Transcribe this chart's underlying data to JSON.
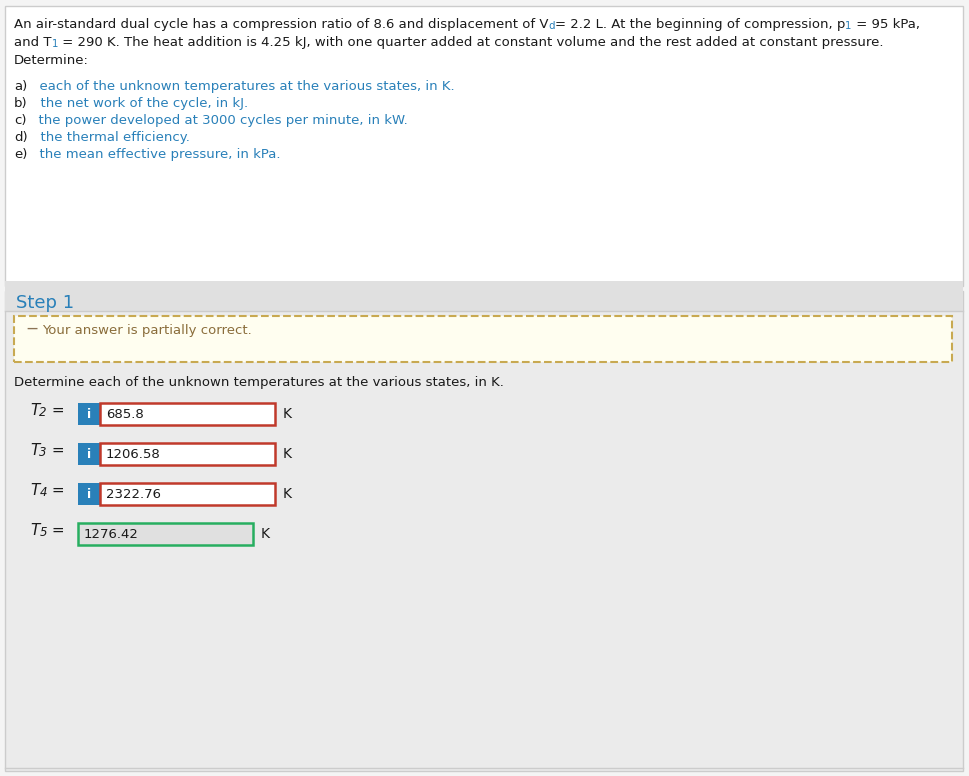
{
  "bg_color": "#f4f4f4",
  "top_panel_bg": "#ffffff",
  "top_panel_border": "#cccccc",
  "bottom_panel_bg": "#ebebeb",
  "bottom_panel_border": "#cccccc",
  "black": "#1a1a1a",
  "blue": "#2980b9",
  "partial_correct_text": "Your answer is partially correct.",
  "partial_correct_color": "#8a6d3b",
  "partial_correct_bg": "#fffef0",
  "partial_correct_border": "#c8a951",
  "step1_color": "#2980b9",
  "determine_text": "Determine each of the unknown temperatures at the various states, in K.",
  "i_button_color": "#2980b9",
  "input_bg": "#ffffff",
  "input_bg_gray": "#e0e0e0",
  "red_border": "#c0392b",
  "green_border": "#27ae60",
  "rows": [
    {
      "label_pre": "T",
      "label_sub": "2",
      "value": "685.8",
      "has_i": true
    },
    {
      "label_pre": "T",
      "label_sub": "3",
      "value": "1206.58",
      "has_i": true
    },
    {
      "label_pre": "T",
      "label_sub": "4",
      "value": "2322.76",
      "has_i": true
    },
    {
      "label_pre": "T",
      "label_sub": "5",
      "value": "1276.42",
      "has_i": false
    }
  ],
  "items_prefix": [
    "a)",
    "b)",
    "c)",
    "d)",
    "e)"
  ],
  "items_text": [
    "each of the unknown temperatures at the various states, in K.",
    "the net work of the cycle, in kJ.",
    "the power developed at 3000 cycles per minute, in kW.",
    "the thermal efficiency.",
    "the mean effective pressure, in kPa."
  ]
}
